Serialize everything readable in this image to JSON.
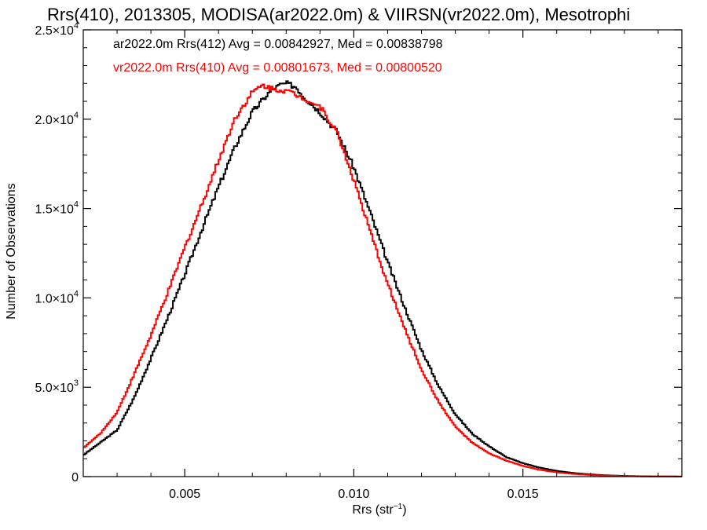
{
  "chart_data": {
    "type": "line",
    "step": true,
    "title": "Rrs(410), 2013305, MODISA(ar2022.0m) & VIIRSN(vr2022.0m), Mesotrophi",
    "xlabel_main": "Rrs (str",
    "xlabel_sup": "−1",
    "xlabel_end": ")",
    "ylabel": "Number of Observations",
    "xlim": [
      0.002,
      0.0197
    ],
    "ylim": [
      0,
      25000
    ],
    "x_ticks": [
      {
        "value": 0.005,
        "label": "0.005"
      },
      {
        "value": 0.01,
        "label": "0.010"
      },
      {
        "value": 0.015,
        "label": "0.015"
      }
    ],
    "x_minor_ticks": [
      0.003,
      0.004,
      0.006,
      0.007,
      0.008,
      0.009,
      0.011,
      0.012,
      0.013,
      0.014,
      0.016,
      0.017,
      0.018,
      0.019
    ],
    "y_ticks": [
      {
        "value": 0,
        "mant": "0",
        "exp": ""
      },
      {
        "value": 5000,
        "mant": "5.0×10",
        "exp": "3"
      },
      {
        "value": 10000,
        "mant": "1.0×10",
        "exp": "4"
      },
      {
        "value": 15000,
        "mant": "1.5×10",
        "exp": "4"
      },
      {
        "value": 20000,
        "mant": "2.0×10",
        "exp": "4"
      },
      {
        "value": 25000,
        "mant": "2.5×10",
        "exp": "4"
      }
    ],
    "y_minor_ticks": [
      1000,
      2000,
      3000,
      4000,
      6000,
      7000,
      8000,
      9000,
      11000,
      12000,
      13000,
      14000,
      16000,
      17000,
      18000,
      19000,
      21000,
      22000,
      23000,
      24000
    ],
    "series": [
      {
        "name": "ar2022.0m Rrs(412) Avg = 0.00842927, Med = 0.00838798",
        "color": "#000000",
        "x": [
          0.002,
          0.0025,
          0.003,
          0.0035,
          0.004,
          0.0045,
          0.005,
          0.0055,
          0.006,
          0.0065,
          0.007,
          0.0075,
          0.0078,
          0.008,
          0.0083,
          0.0085,
          0.009,
          0.0095,
          0.01,
          0.0105,
          0.011,
          0.0115,
          0.012,
          0.0125,
          0.013,
          0.0135,
          0.014,
          0.0145,
          0.015,
          0.0155,
          0.016,
          0.0165,
          0.017,
          0.0175,
          0.018,
          0.0185,
          0.019,
          0.0197
        ],
        "y": [
          1200,
          1900,
          2600,
          4400,
          6600,
          8900,
          11300,
          13800,
          16200,
          18500,
          20400,
          21500,
          21900,
          22000,
          21800,
          21300,
          20400,
          19300,
          17300,
          14700,
          12000,
          9500,
          7100,
          5100,
          3500,
          2400,
          1700,
          1100,
          750,
          500,
          320,
          200,
          120,
          70,
          40,
          20,
          10,
          5
        ]
      },
      {
        "name": "vr2022.0m Rrs(410) Avg = 0.00801673, Med = 0.00800520",
        "color": "#ff0000",
        "x": [
          0.002,
          0.0025,
          0.003,
          0.0035,
          0.004,
          0.0045,
          0.005,
          0.0055,
          0.006,
          0.0065,
          0.007,
          0.0073,
          0.0076,
          0.008,
          0.0085,
          0.009,
          0.0095,
          0.01,
          0.0105,
          0.011,
          0.0115,
          0.012,
          0.0125,
          0.013,
          0.0135,
          0.014,
          0.0145,
          0.015,
          0.0155,
          0.016,
          0.0165,
          0.017,
          0.0175,
          0.018,
          0.0185,
          0.019,
          0.0197
        ],
        "y": [
          1600,
          2400,
          3600,
          5700,
          7900,
          10300,
          12800,
          15200,
          17700,
          20100,
          21500,
          21900,
          21700,
          21600,
          21200,
          20700,
          19300,
          16600,
          13600,
          10800,
          8300,
          6000,
          4200,
          2800,
          1900,
          1300,
          900,
          600,
          380,
          240,
          150,
          90,
          55,
          30,
          15,
          8,
          4
        ]
      }
    ]
  }
}
